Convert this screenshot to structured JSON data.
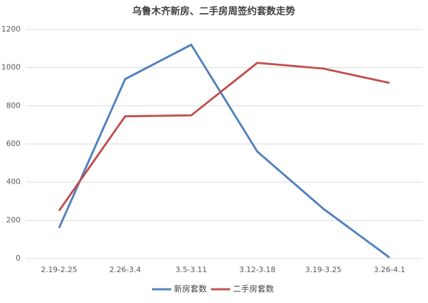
{
  "chart_data": {
    "type": "line",
    "title": "乌鲁木齐新房、二手房周签约套数走势",
    "categories": [
      "2.19-2.25",
      "2.26-3.4",
      "3.5-3.11",
      "3.12-3.18",
      "3.19-3.25",
      "3.26-4.1"
    ],
    "series": [
      {
        "name": "新房套数",
        "color": "#4f81bd",
        "values": [
          160,
          940,
          1120,
          560,
          260,
          5
        ]
      },
      {
        "name": "二手房套数",
        "color": "#c0504d",
        "values": [
          250,
          745,
          750,
          1025,
          995,
          920
        ]
      }
    ],
    "ylim": [
      0,
      1200
    ],
    "yticks": [
      0,
      200,
      400,
      600,
      800,
      1000,
      1200
    ],
    "grid": true,
    "legend": "bottom"
  }
}
